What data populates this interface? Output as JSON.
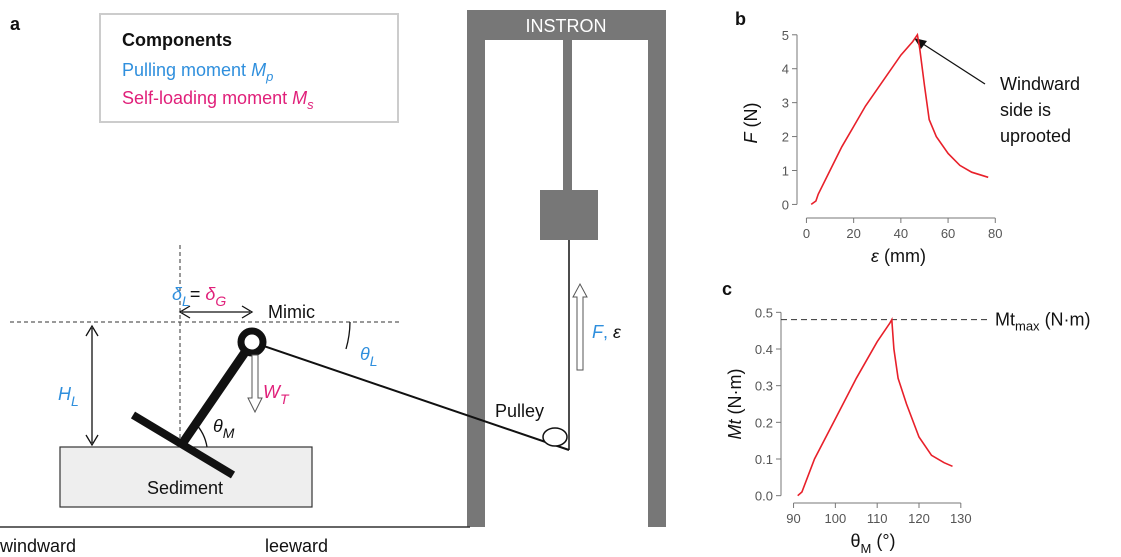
{
  "panel_a": {
    "label": "a",
    "legend": {
      "title": "Components",
      "items": [
        {
          "text": "Pulling moment",
          "symbol": "M",
          "sub": "p"
        },
        {
          "text": "Self-loading moment",
          "symbol": "M",
          "sub": "s"
        }
      ]
    },
    "instron": "INSTRON",
    "delta": {
      "left": "δ",
      "left_sub": "L",
      "eq": "=",
      "right": "δ",
      "right_sub": "G"
    },
    "mimic": "Mimic",
    "theta_l": {
      "symbol": "θ",
      "sub": "L"
    },
    "height": {
      "symbol": "H",
      "sub": "L"
    },
    "weight": {
      "symbol": "W",
      "sub": "T"
    },
    "theta_m": {
      "symbol": "θ",
      "sub": "M"
    },
    "sediment": "Sediment",
    "pulley": "Pulley",
    "force": {
      "symbol": "F",
      "sep": ",",
      "strain": "ε"
    },
    "windward": "windward",
    "leeward": "leeward"
  },
  "chart_data": [
    {
      "type": "line",
      "panel": "b",
      "x_label": [
        "ε",
        " (mm)"
      ],
      "y_label": [
        "F",
        " (N)"
      ],
      "x": [
        2,
        4,
        5,
        10,
        15,
        20,
        25,
        30,
        35,
        40,
        45,
        47,
        48,
        50,
        52,
        55,
        60,
        65,
        70,
        77
      ],
      "series": [
        {
          "color": "#e8202a",
          "values": [
            0,
            0.1,
            0.3,
            1.0,
            1.7,
            2.3,
            2.9,
            3.4,
            3.9,
            4.4,
            4.8,
            5.0,
            4.6,
            3.5,
            2.5,
            2.0,
            1.5,
            1.15,
            0.95,
            0.8
          ]
        }
      ],
      "xlim": [
        -4,
        82
      ],
      "ylim": [
        -0.4,
        5.2
      ],
      "xticks": [
        0,
        20,
        40,
        60,
        80
      ],
      "yticks": [
        0,
        1,
        2,
        3,
        4,
        5
      ],
      "annotation": [
        "Windward",
        "side is",
        "uprooted"
      ]
    },
    {
      "type": "line",
      "panel": "c",
      "x_label": [
        "θ",
        "M",
        " (°)"
      ],
      "y_label": [
        "Mt",
        " (N·m)"
      ],
      "x": [
        91,
        92,
        95,
        100,
        105,
        110,
        113,
        113.5,
        114,
        115,
        117,
        120,
        123,
        126,
        128
      ],
      "series": [
        {
          "color": "#e8202a",
          "values": [
            0,
            0.01,
            0.1,
            0.21,
            0.32,
            0.42,
            0.47,
            0.48,
            0.4,
            0.32,
            0.25,
            0.16,
            0.11,
            0.09,
            0.08
          ]
        }
      ],
      "xlim": [
        87,
        131
      ],
      "ylim": [
        -0.02,
        0.52
      ],
      "xticks": [
        90,
        100,
        110,
        120,
        130
      ],
      "yticks": [
        {
          "value": 0,
          "label": "0.0"
        },
        0.1,
        0.2,
        0.3,
        0.4,
        0.5
      ],
      "reference": {
        "value": 0.48,
        "label": [
          "Mt",
          "max",
          " (N·m)"
        ]
      }
    }
  ]
}
